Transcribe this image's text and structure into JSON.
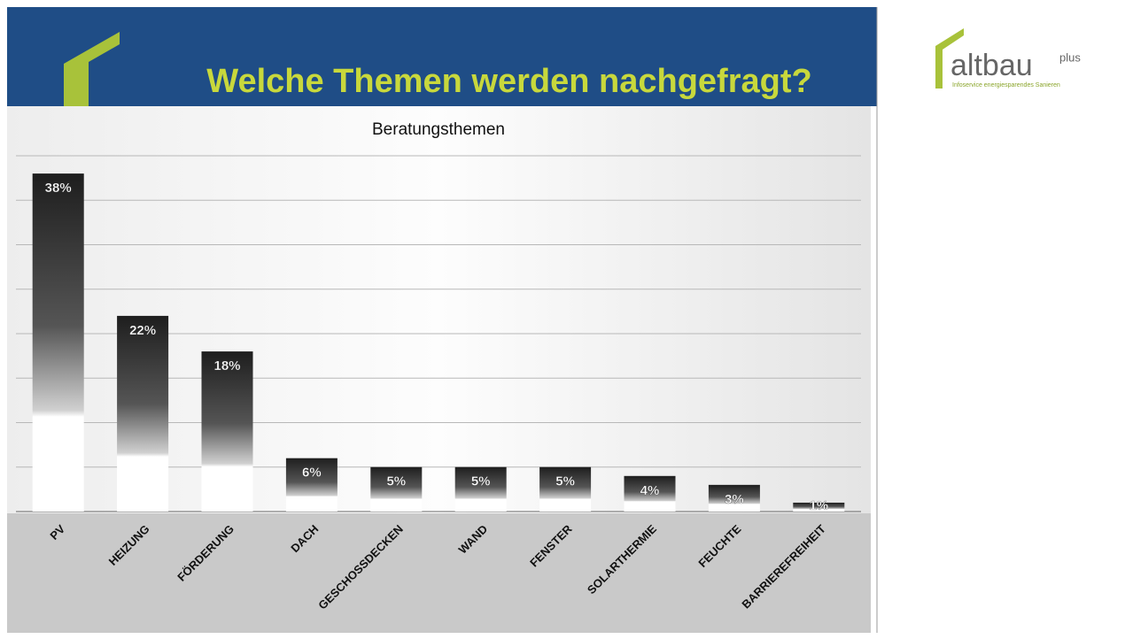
{
  "header": {
    "title": "Welche Themen werden nachgefragt?"
  },
  "logo": {
    "name": "altbau",
    "suffix": "plus",
    "tagline": "Infoservice energiesparendes Sanieren"
  },
  "chart_data": {
    "type": "bar",
    "title": "Beratungsthemen",
    "categories": [
      "PV",
      "HEIZUNG",
      "FÖRDERUNG",
      "DACH",
      "GESCHOSSDECKEN",
      "WAND",
      "FENSTER",
      "SOLARTHERMIE",
      "FEUCHTE",
      "BARRIEREFREIHEIT"
    ],
    "values": [
      38,
      22,
      18,
      6,
      5,
      5,
      5,
      4,
      3,
      1
    ],
    "value_labels": [
      "38%",
      "22%",
      "18%",
      "6%",
      "5%",
      "5%",
      "5%",
      "4%",
      "3%",
      "1%"
    ],
    "color": "#1e1e1e",
    "ylim": [
      0,
      40
    ],
    "yticks": [
      0,
      5,
      10,
      15,
      20,
      25,
      30,
      35,
      40
    ],
    "grid": true
  }
}
